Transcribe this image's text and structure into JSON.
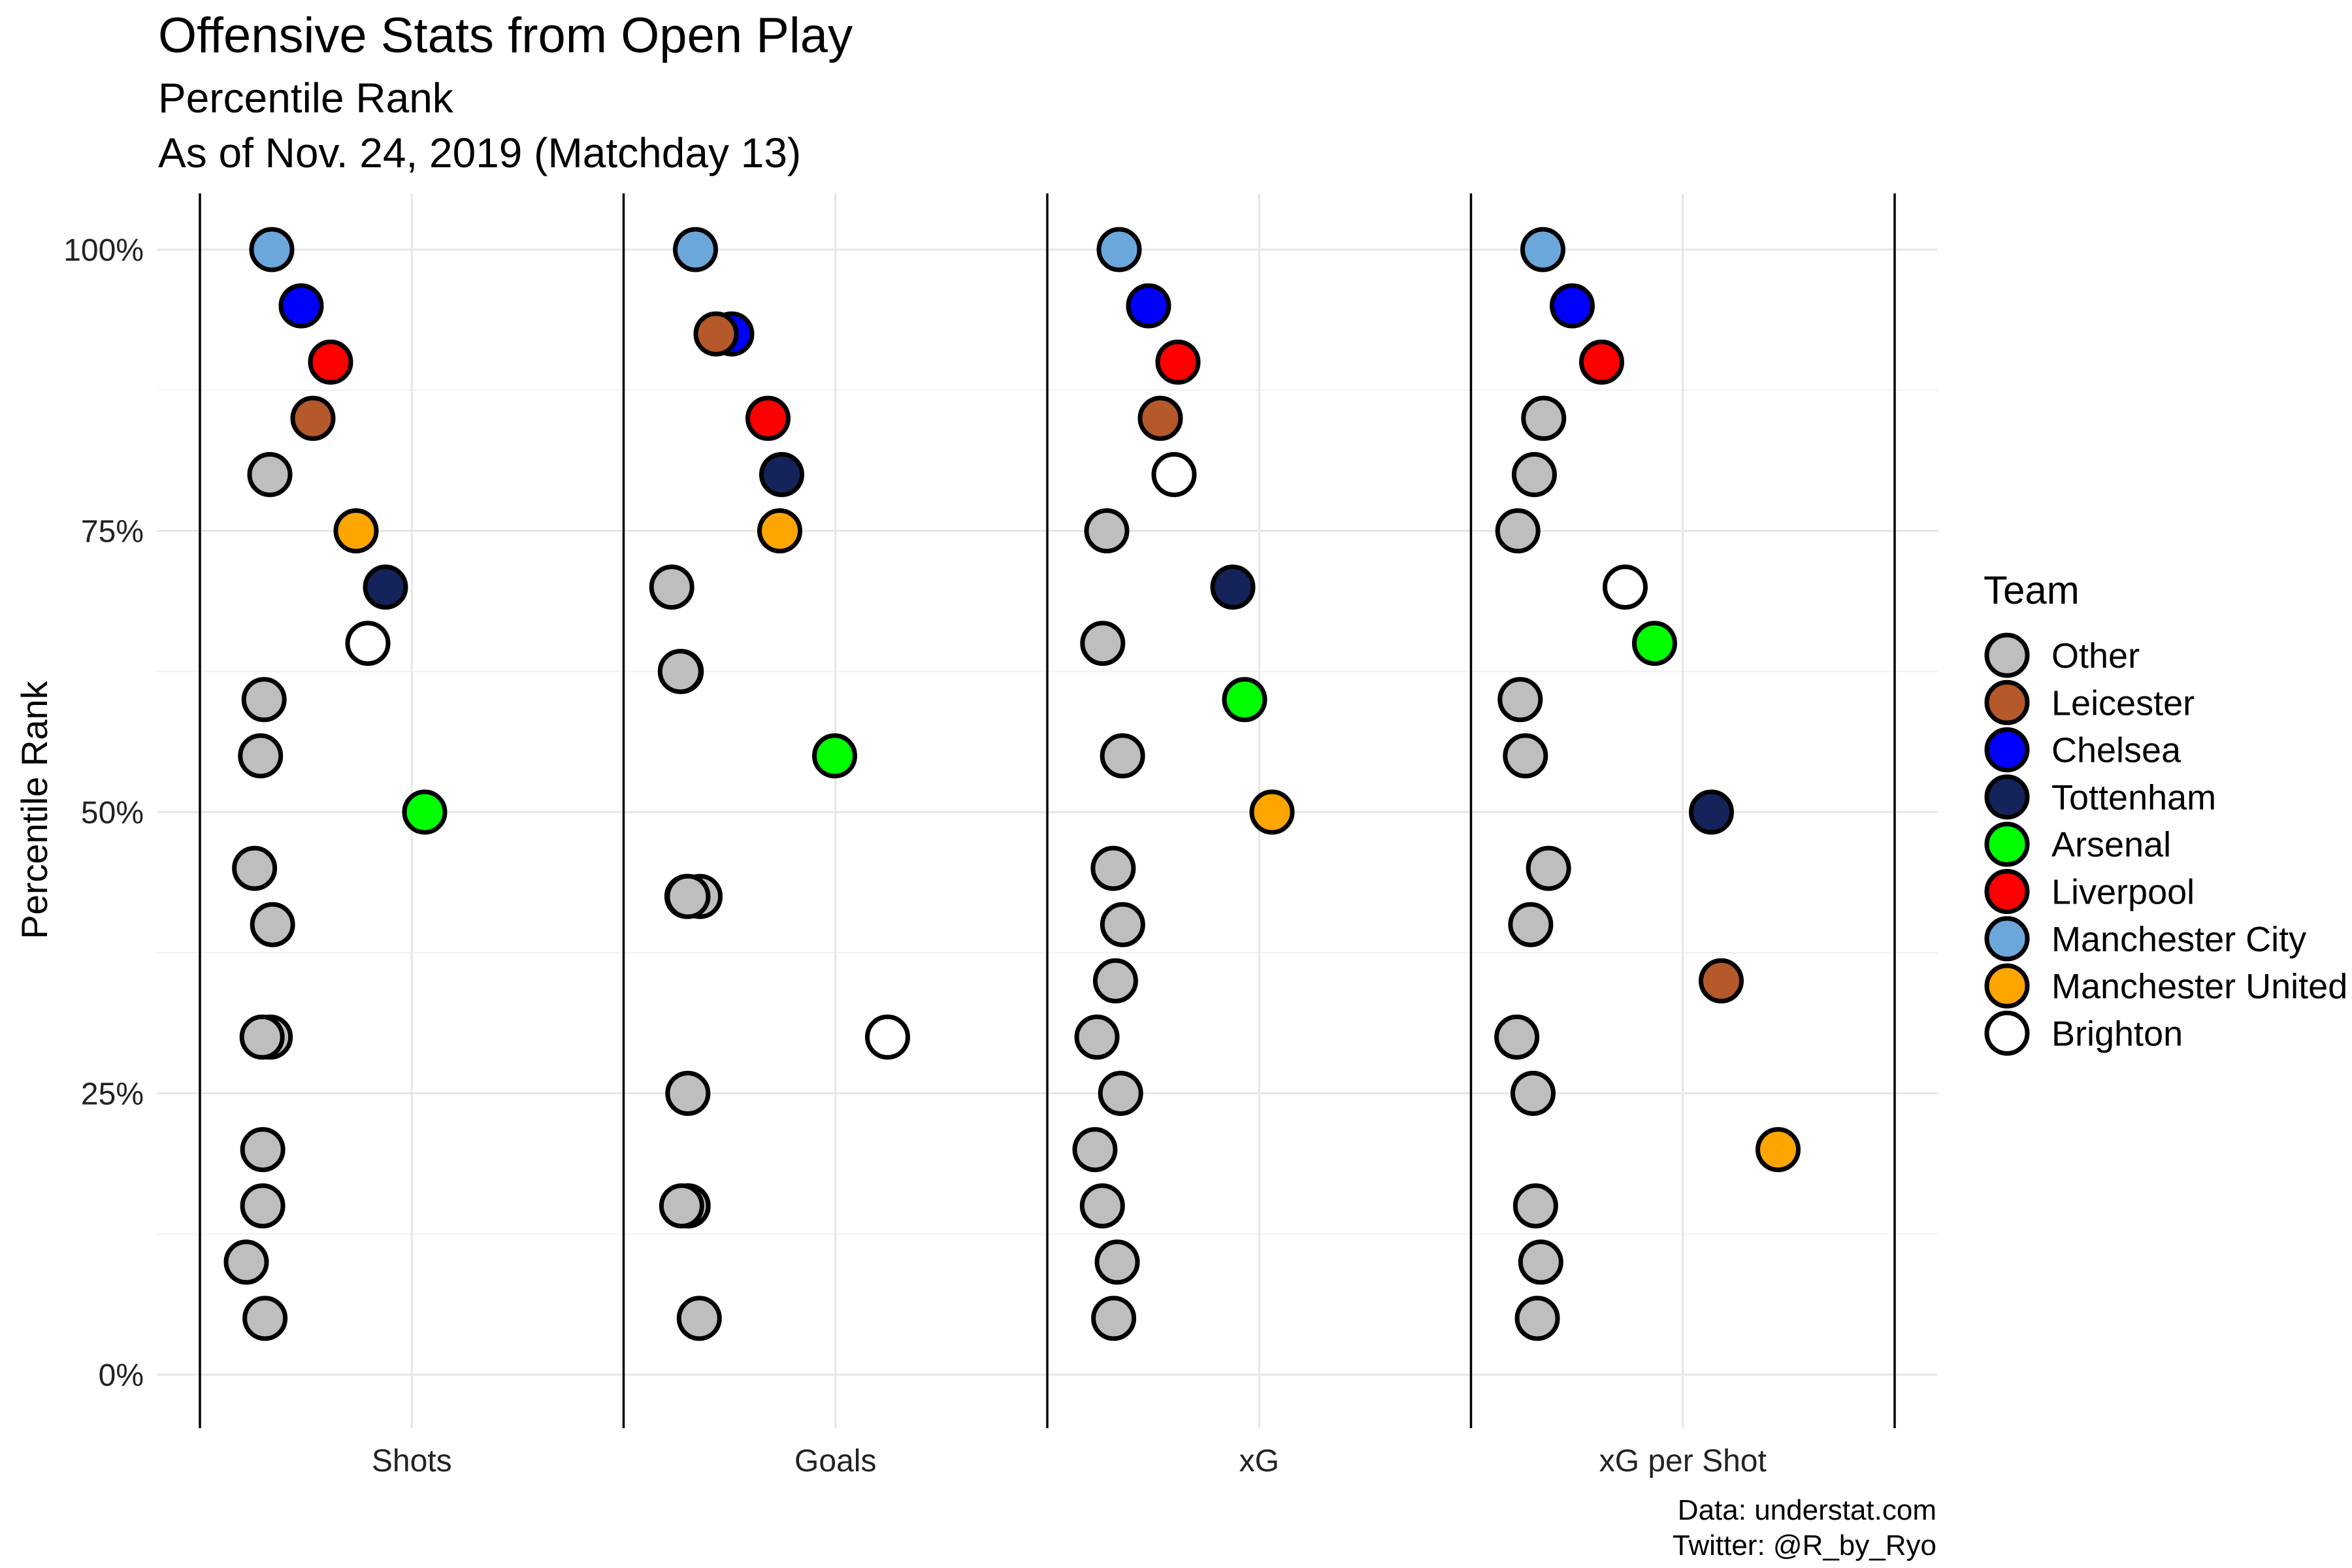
{
  "chart_data": {
    "type": "scatter",
    "title": "Offensive Stats from Open Play",
    "subtitle_lines": [
      "Percentile Rank",
      "As of Nov. 24, 2019 (Matchday 13)"
    ],
    "xlabel": "",
    "ylabel": "Percentile Rank",
    "categories": [
      "Shots",
      "Goals",
      "xG",
      "xG per Shot"
    ],
    "y_ticks": [
      "0%",
      "25%",
      "50%",
      "75%",
      "100%"
    ],
    "y_tick_values": [
      0,
      25,
      50,
      75,
      100
    ],
    "ylim": [
      -5,
      105
    ],
    "grid": true,
    "legend": {
      "title": "Team",
      "placement": "right",
      "entries": [
        {
          "name": "Other",
          "color": "#bebebe"
        },
        {
          "name": "Leicester",
          "color": "#b5582a"
        },
        {
          "name": "Chelsea",
          "color": "#0000ff"
        },
        {
          "name": "Tottenham",
          "color": "#14245a"
        },
        {
          "name": "Arsenal",
          "color": "#00ff00"
        },
        {
          "name": "Liverpool",
          "color": "#ff0000"
        },
        {
          "name": "Manchester City",
          "color": "#6ca7dc"
        },
        {
          "name": "Manchester United",
          "color": "#ffa500"
        },
        {
          "name": "Brighton",
          "color": "#ffffff"
        }
      ]
    },
    "series": [
      {
        "team": "Manchester City",
        "values": [
          100,
          100,
          100,
          100
        ]
      },
      {
        "team": "Chelsea",
        "values": [
          95,
          92.5,
          95,
          95
        ]
      },
      {
        "team": "Liverpool",
        "values": [
          90,
          85,
          90,
          90
        ]
      },
      {
        "team": "Leicester",
        "values": [
          85,
          92.5,
          85,
          35
        ]
      },
      {
        "team": "Manchester United",
        "values": [
          75,
          75,
          50,
          20
        ]
      },
      {
        "team": "Tottenham",
        "values": [
          70,
          80,
          70,
          50
        ]
      },
      {
        "team": "Brighton",
        "values": [
          65,
          30,
          80,
          70
        ]
      },
      {
        "team": "Arsenal",
        "values": [
          50,
          55,
          60,
          65
        ]
      }
    ],
    "other_points": [
      [
        80,
        60,
        55,
        45,
        40,
        30,
        30,
        20,
        15,
        10,
        5
      ],
      [
        70,
        62.5,
        62.5,
        42.5,
        42.5,
        42.5,
        25,
        15,
        15,
        15,
        5
      ],
      [
        75,
        65,
        55,
        45,
        40,
        35,
        30,
        25,
        20,
        15,
        10,
        5
      ],
      [
        85,
        80,
        75,
        60,
        55,
        45,
        40,
        30,
        25,
        15,
        10,
        5
      ]
    ]
  },
  "caption_lines": [
    "Data: understat.com",
    "Twitter: @R_by_Ryo"
  ]
}
